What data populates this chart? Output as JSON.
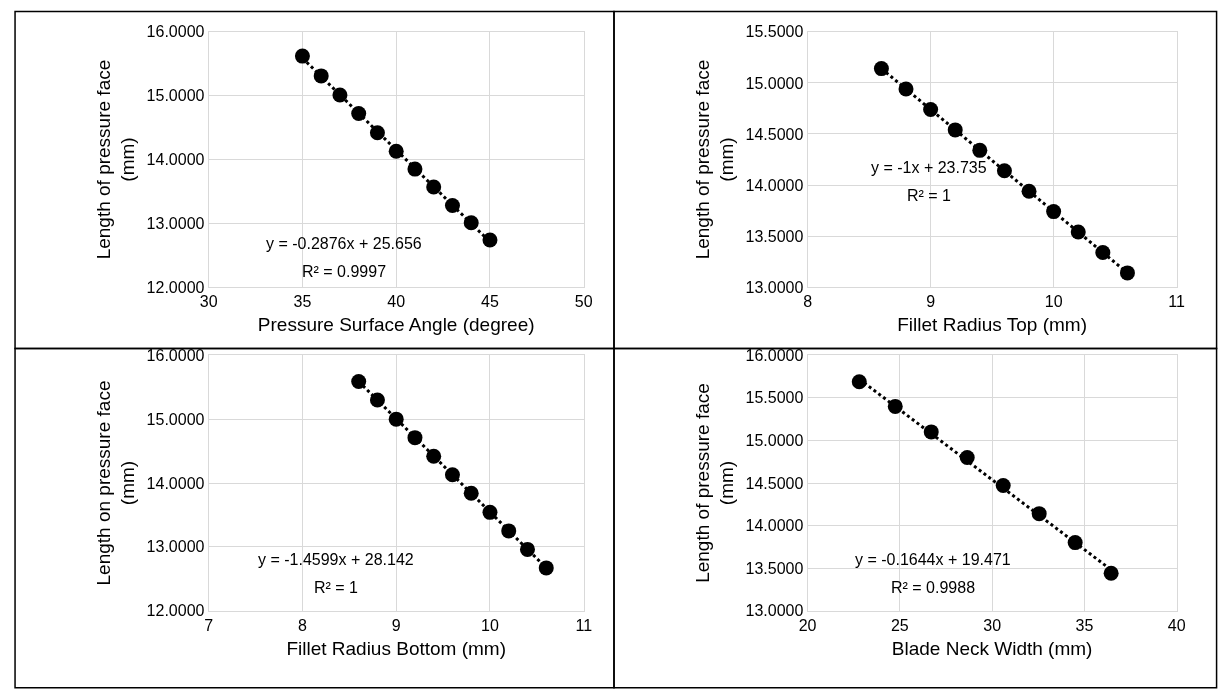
{
  "chart_data": [
    {
      "type": "scatter",
      "xlabel": "Pressure Surface Angle (degree)",
      "ylabel": "Length of pressure face (mm)",
      "xlim": [
        30,
        50
      ],
      "xticks": [
        30,
        35,
        40,
        45,
        50
      ],
      "ylim": [
        12,
        16
      ],
      "yticks": [
        {
          "value": 12,
          "label": "12.0000"
        },
        {
          "value": 13,
          "label": "13.0000"
        },
        {
          "value": 14,
          "label": "14.0000"
        },
        {
          "value": 15,
          "label": "15.0000"
        },
        {
          "value": 16,
          "label": "16.0000"
        }
      ],
      "grid": true,
      "marker": "circle",
      "series": [
        {
          "color": "#000000",
          "x": [
            35,
            36,
            37,
            38,
            39,
            40,
            41,
            42,
            43,
            44,
            45
          ],
          "values": [
            15.62,
            15.31,
            15.01,
            14.72,
            14.42,
            14.13,
            13.85,
            13.57,
            13.28,
            13.01,
            12.74
          ]
        },
        {
          "type": "line",
          "color": "#000000",
          "line_style": "dotted",
          "marker": "none",
          "x": [
            35,
            45
          ],
          "values": [
            15.59,
            12.71
          ]
        }
      ],
      "annotations": [
        "y = -0.2876x + 25.656",
        "R² = 0.9997"
      ]
    },
    {
      "type": "scatter",
      "xlabel": "Fillet Radius Top (mm)",
      "ylabel": "Length of pressure face (mm)",
      "xlim": [
        8,
        11
      ],
      "xticks": [
        8,
        9,
        10,
        11
      ],
      "ylim": [
        13,
        15.5
      ],
      "yticks": [
        {
          "value": 13,
          "label": "13.0000"
        },
        {
          "value": 13.5,
          "label": "13.5000"
        },
        {
          "value": 14,
          "label": "14.0000"
        },
        {
          "value": 14.5,
          "label": "14.5000"
        },
        {
          "value": 15,
          "label": "15.0000"
        },
        {
          "value": 15.5,
          "label": "15.5000"
        }
      ],
      "grid": true,
      "marker": "circle",
      "series": [
        {
          "color": "#000000",
          "x": [
            8.6,
            8.8,
            9.0,
            9.2,
            9.4,
            9.6,
            9.8,
            10.0,
            10.2,
            10.4,
            10.6
          ],
          "values": [
            15.14,
            14.94,
            14.74,
            14.54,
            14.34,
            14.14,
            13.94,
            13.74,
            13.54,
            13.34,
            13.14
          ]
        },
        {
          "type": "line",
          "color": "#000000",
          "line_style": "dotted",
          "marker": "none",
          "x": [
            8.6,
            10.6
          ],
          "values": [
            15.14,
            13.14
          ]
        }
      ],
      "annotations": [
        "y = -1x + 23.735",
        "R² = 1"
      ]
    },
    {
      "type": "scatter",
      "xlabel": "Fillet Radius Bottom (mm)",
      "ylabel": "Length on pressure face (mm)",
      "xlim": [
        7,
        11
      ],
      "xticks": [
        7,
        8,
        9,
        10,
        11
      ],
      "ylim": [
        12,
        16
      ],
      "yticks": [
        {
          "value": 12,
          "label": "12.0000"
        },
        {
          "value": 13,
          "label": "13.0000"
        },
        {
          "value": 14,
          "label": "14.0000"
        },
        {
          "value": 15,
          "label": "15.0000"
        },
        {
          "value": 16,
          "label": "16.0000"
        }
      ],
      "grid": true,
      "marker": "circle",
      "series": [
        {
          "color": "#000000",
          "x": [
            8.6,
            8.8,
            9.0,
            9.2,
            9.4,
            9.6,
            9.8,
            10.0,
            10.2,
            10.4,
            10.6
          ],
          "values": [
            15.59,
            15.3,
            15.0,
            14.71,
            14.42,
            14.13,
            13.84,
            13.54,
            13.25,
            12.96,
            12.67
          ]
        },
        {
          "type": "line",
          "color": "#000000",
          "line_style": "dotted",
          "marker": "none",
          "x": [
            8.6,
            10.6
          ],
          "values": [
            15.59,
            12.67
          ]
        }
      ],
      "annotations": [
        "y = -1.4599x + 28.142",
        "R² = 1"
      ]
    },
    {
      "type": "scatter",
      "xlabel": "Blade Neck Width (mm)",
      "ylabel": "Length of pressure face (mm)",
      "xlim": [
        20,
        40
      ],
      "xticks": [
        20,
        25,
        30,
        35,
        40
      ],
      "ylim": [
        13,
        16
      ],
      "yticks": [
        {
          "value": 13,
          "label": "13.0000"
        },
        {
          "value": 13.5,
          "label": "13.5000"
        },
        {
          "value": 14,
          "label": "14.0000"
        },
        {
          "value": 14.5,
          "label": "14.5000"
        },
        {
          "value": 15,
          "label": "15.0000"
        },
        {
          "value": 15.5,
          "label": "15.5000"
        },
        {
          "value": 16,
          "label": "16.0000"
        }
      ],
      "grid": true,
      "marker": "circle",
      "series": [
        {
          "color": "#000000",
          "x": [
            22.8,
            24.75,
            26.7,
            28.65,
            30.6,
            32.55,
            34.5,
            36.45
          ],
          "values": [
            15.69,
            15.4,
            15.1,
            14.8,
            14.47,
            14.14,
            13.8,
            13.44
          ]
        },
        {
          "type": "line",
          "color": "#000000",
          "line_style": "dotted",
          "marker": "none",
          "x": [
            22.8,
            36.45
          ],
          "values": [
            15.72,
            13.48
          ]
        }
      ],
      "annotations": [
        "y = -0.1644x + 19.471",
        "R² = 0.9988"
      ]
    }
  ]
}
